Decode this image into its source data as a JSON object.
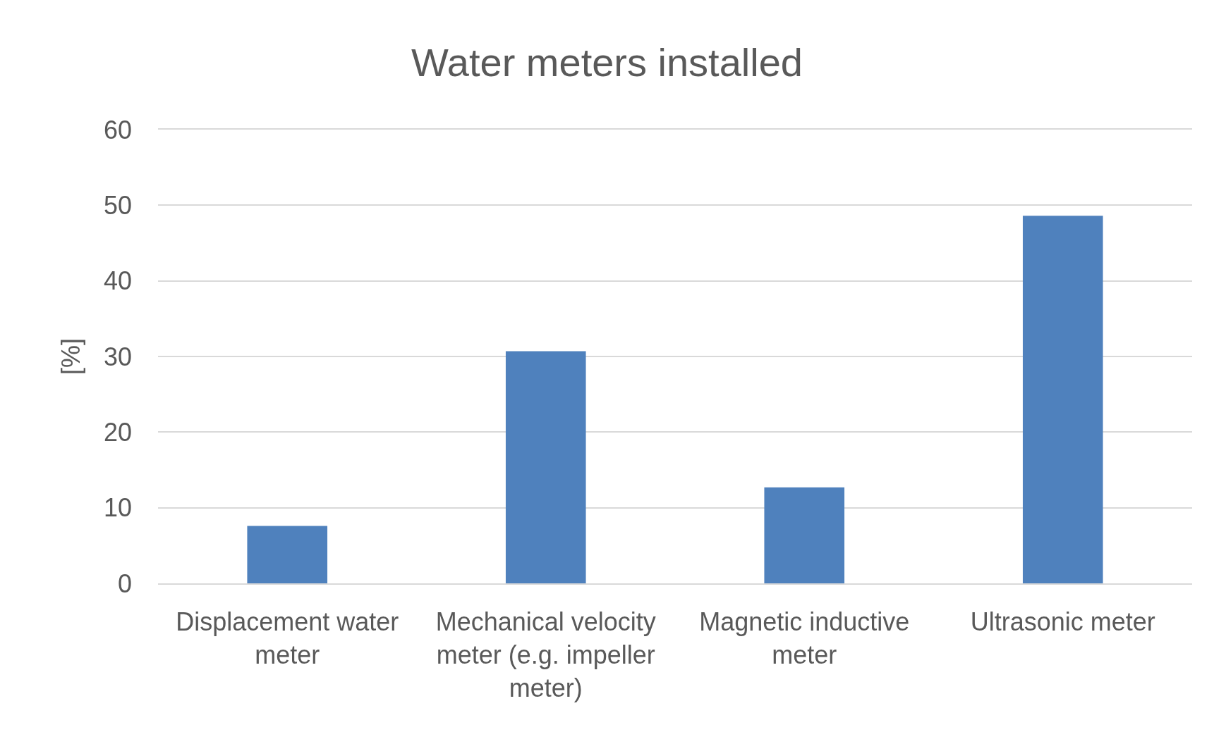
{
  "chart_data": {
    "type": "bar",
    "title": "Water meters installed",
    "ylabel": "[%]",
    "categories": [
      "Displacement water meter",
      "Mechanical velocity meter (e.g. impeller meter)",
      "Magnetic inductive meter",
      "Ultrasonic meter"
    ],
    "values": [
      7.6,
      30.7,
      12.7,
      48.6
    ],
    "color": "#4f81bd",
    "ylim": [
      0,
      60
    ],
    "yticks": [
      0,
      10,
      20,
      30,
      40,
      50,
      60
    ],
    "grid": "y"
  }
}
